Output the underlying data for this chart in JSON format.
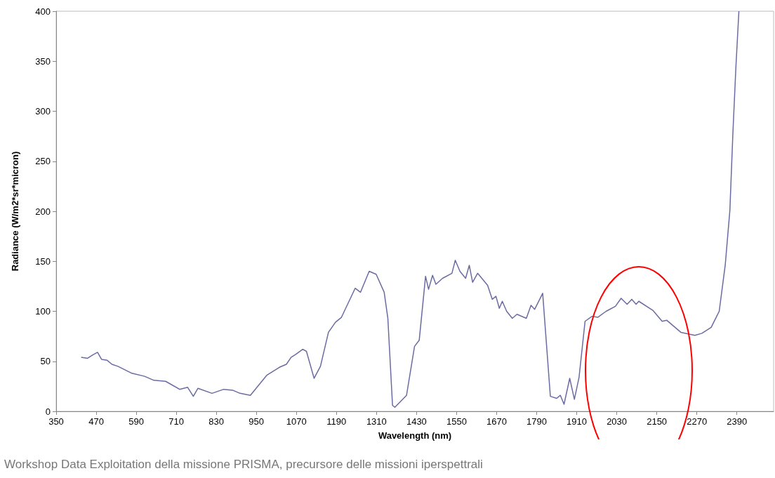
{
  "chart_data": {
    "type": "line",
    "xlabel": "Wavelength (nm)",
    "ylabel": "Radiance (W/m2*sr*micron)",
    "x": [
      425,
      444,
      458,
      474,
      486,
      503,
      517,
      535,
      577,
      615,
      643,
      678,
      720,
      744,
      761,
      775,
      817,
      852,
      880,
      901,
      932,
      981,
      1019,
      1040,
      1054,
      1068,
      1089,
      1100,
      1123,
      1142,
      1166,
      1187,
      1205,
      1246,
      1262,
      1288,
      1309,
      1333,
      1344,
      1358,
      1365,
      1400,
      1424,
      1438,
      1457,
      1466,
      1478,
      1488,
      1508,
      1536,
      1546,
      1560,
      1577,
      1588,
      1598,
      1613,
      1643,
      1657,
      1668,
      1678,
      1687,
      1700,
      1717,
      1731,
      1759,
      1773,
      1784,
      1808,
      1831,
      1850,
      1861,
      1872,
      1889,
      1903,
      1917,
      1935,
      1956,
      1973,
      1998,
      2026,
      2043,
      2061,
      2075,
      2088,
      2096,
      2138,
      2166,
      2180,
      2222,
      2264,
      2285,
      2313,
      2337,
      2355,
      2369,
      2378,
      2387,
      2396
    ],
    "series": [
      {
        "color": "#6b6ba3",
        "values": [
          54,
          53,
          56,
          59,
          52,
          51,
          47,
          45,
          38,
          35,
          31,
          30,
          22,
          24,
          15,
          23,
          18,
          22,
          21,
          18,
          16,
          36,
          44,
          47,
          54,
          57,
          62,
          60,
          33,
          45,
          79,
          89,
          94,
          123,
          119,
          140,
          137,
          119,
          93,
          6,
          4,
          16,
          65,
          71,
          135,
          122,
          136,
          127,
          133,
          138,
          151,
          140,
          133,
          146,
          129,
          138,
          126,
          112,
          115,
          103,
          110,
          100,
          93,
          97,
          93,
          106,
          102,
          118,
          15,
          13,
          16,
          7,
          33,
          12,
          34,
          90,
          95,
          94,
          100,
          105,
          113,
          107,
          112,
          107,
          110,
          101,
          90,
          91,
          79,
          76,
          78,
          84,
          100,
          146,
          201,
          278,
          344,
          400
        ]
      }
    ],
    "xlim": [
      350,
      2500
    ],
    "xticks": [
      350,
      470,
      590,
      710,
      830,
      950,
      1070,
      1190,
      1310,
      1430,
      1550,
      1670,
      1790,
      1910,
      2030,
      2150,
      2270,
      2390
    ],
    "ylim": [
      0,
      400
    ],
    "yticks": [
      0,
      50,
      100,
      150,
      200,
      250,
      300,
      350,
      400
    ],
    "grid": false,
    "marker": "none",
    "line_style": "solid",
    "annotations": [
      "Workshop Data Exploitation della missione PRISMA, precursore delle missioni iperspettrali"
    ]
  }
}
